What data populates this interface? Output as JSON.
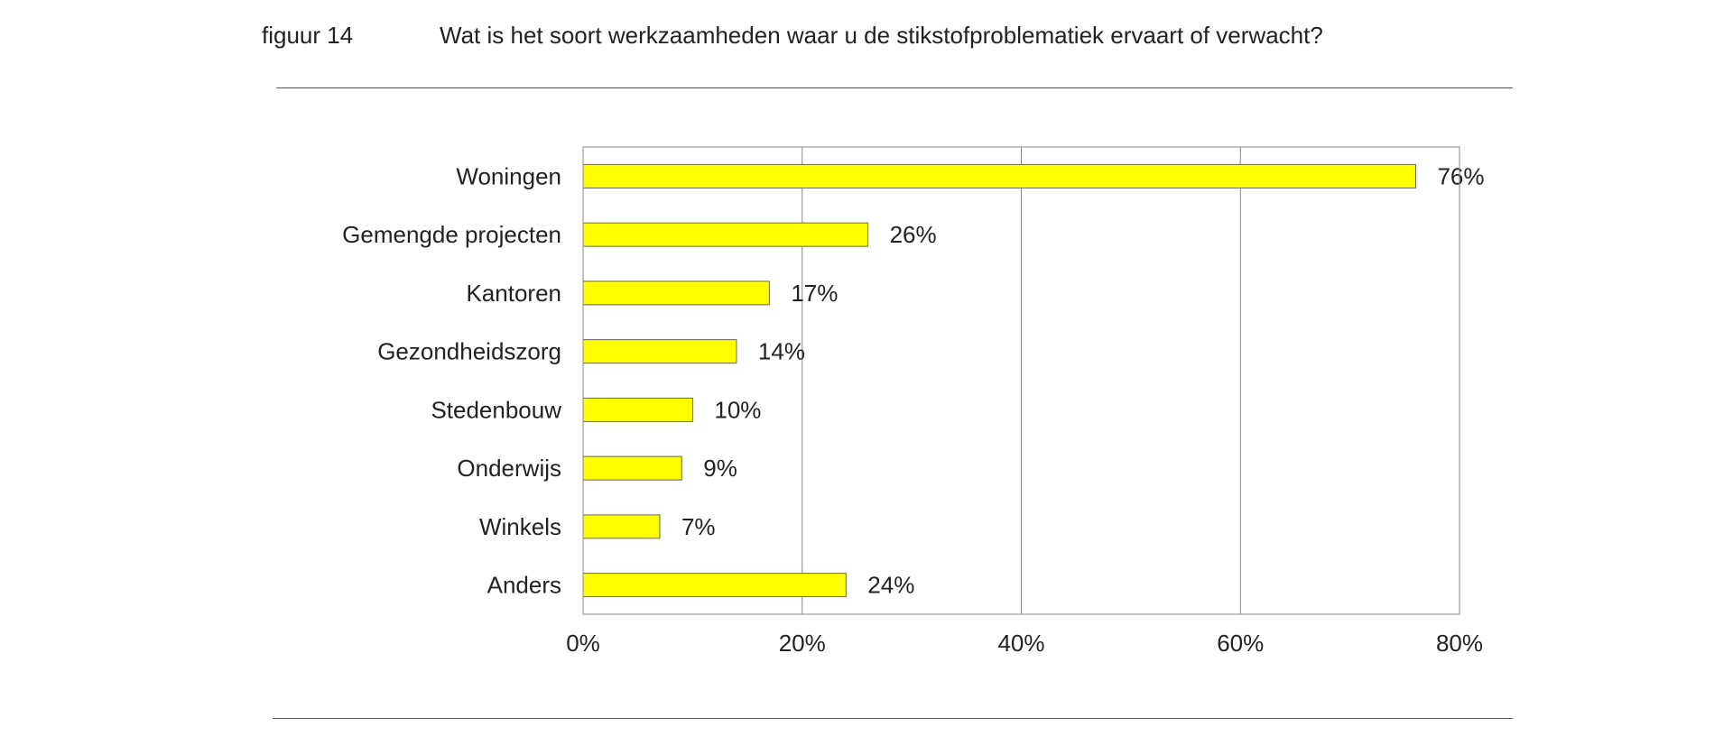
{
  "figure": {
    "label": "figuur 14",
    "title": "Wat is het soort werkzaamheden waar u de stikstofproblematiek ervaart of verwacht?"
  },
  "chart_data": {
    "type": "bar",
    "orientation": "horizontal",
    "title": "Wat is het soort werkzaamheden waar u de stikstofproblematiek ervaart of verwacht?",
    "categories": [
      "Woningen",
      "Gemengde projecten",
      "Kantoren",
      "Gezondheidszorg",
      "Stedenbouw",
      "Onderwijs",
      "Winkels",
      "Anders"
    ],
    "values": [
      76,
      26,
      17,
      14,
      10,
      9,
      7,
      24
    ],
    "value_labels": [
      "76%",
      "26%",
      "17%",
      "14%",
      "10%",
      "9%",
      "7%",
      "24%"
    ],
    "xlim": [
      0,
      80
    ],
    "xticks": [
      0,
      20,
      40,
      60,
      80
    ],
    "xtick_labels": [
      "0%",
      "20%",
      "40%",
      "60%",
      "80%"
    ],
    "xlabel": "",
    "ylabel": "",
    "grid": true,
    "legend": "none",
    "bar_color": "#ffff00",
    "bar_edge_color": "#666666",
    "grid_color": "#888888"
  }
}
